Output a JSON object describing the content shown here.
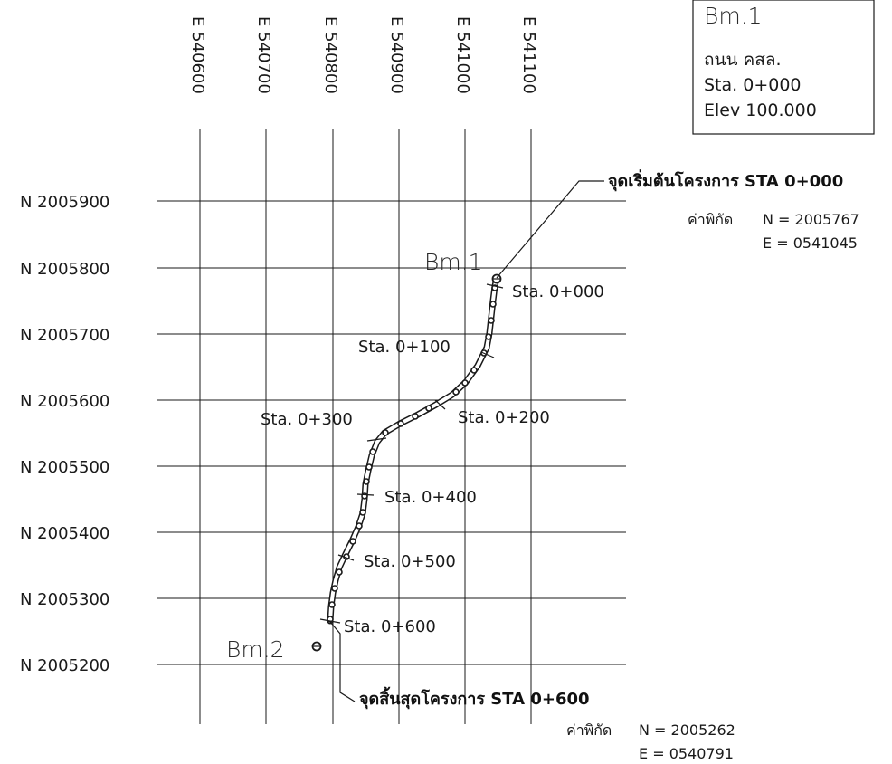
{
  "grid": {
    "easting_labels": [
      "E 540600",
      "E 540700",
      "E 540800",
      "E 540900",
      "E 541000",
      "E 541100"
    ],
    "northing_labels": [
      "N 2005900",
      "N 2005800",
      "N 2005700",
      "N 2005600",
      "N 2005500",
      "N 2005400",
      "N 2005300",
      "N 2005200"
    ]
  },
  "benchmark_box": {
    "title": "Bm.1",
    "road": "ถนน คสล.",
    "station": "Sta. 0+000",
    "elevation": "Elev 100.000"
  },
  "benchmarks": {
    "bm1": "Bm.1",
    "bm2": "Bm.2"
  },
  "stations": [
    "Sta. 0+000",
    "Sta. 0+100",
    "Sta. 0+200",
    "Sta. 0+300",
    "Sta. 0+400",
    "Sta. 0+500",
    "Sta. 0+600"
  ],
  "start_point": {
    "title": "จุดเริ่มต้นโครงการ STA 0+000",
    "coord_label": "ค่าพิกัด",
    "n": "N = 2005767",
    "e": "E = 0541045"
  },
  "end_point": {
    "title": "จุดสิ้นสุดโครงการ STA 0+600",
    "coord_label": "ค่าพิกัด",
    "n": "N = 2005262",
    "e": "E = 0540791"
  }
}
